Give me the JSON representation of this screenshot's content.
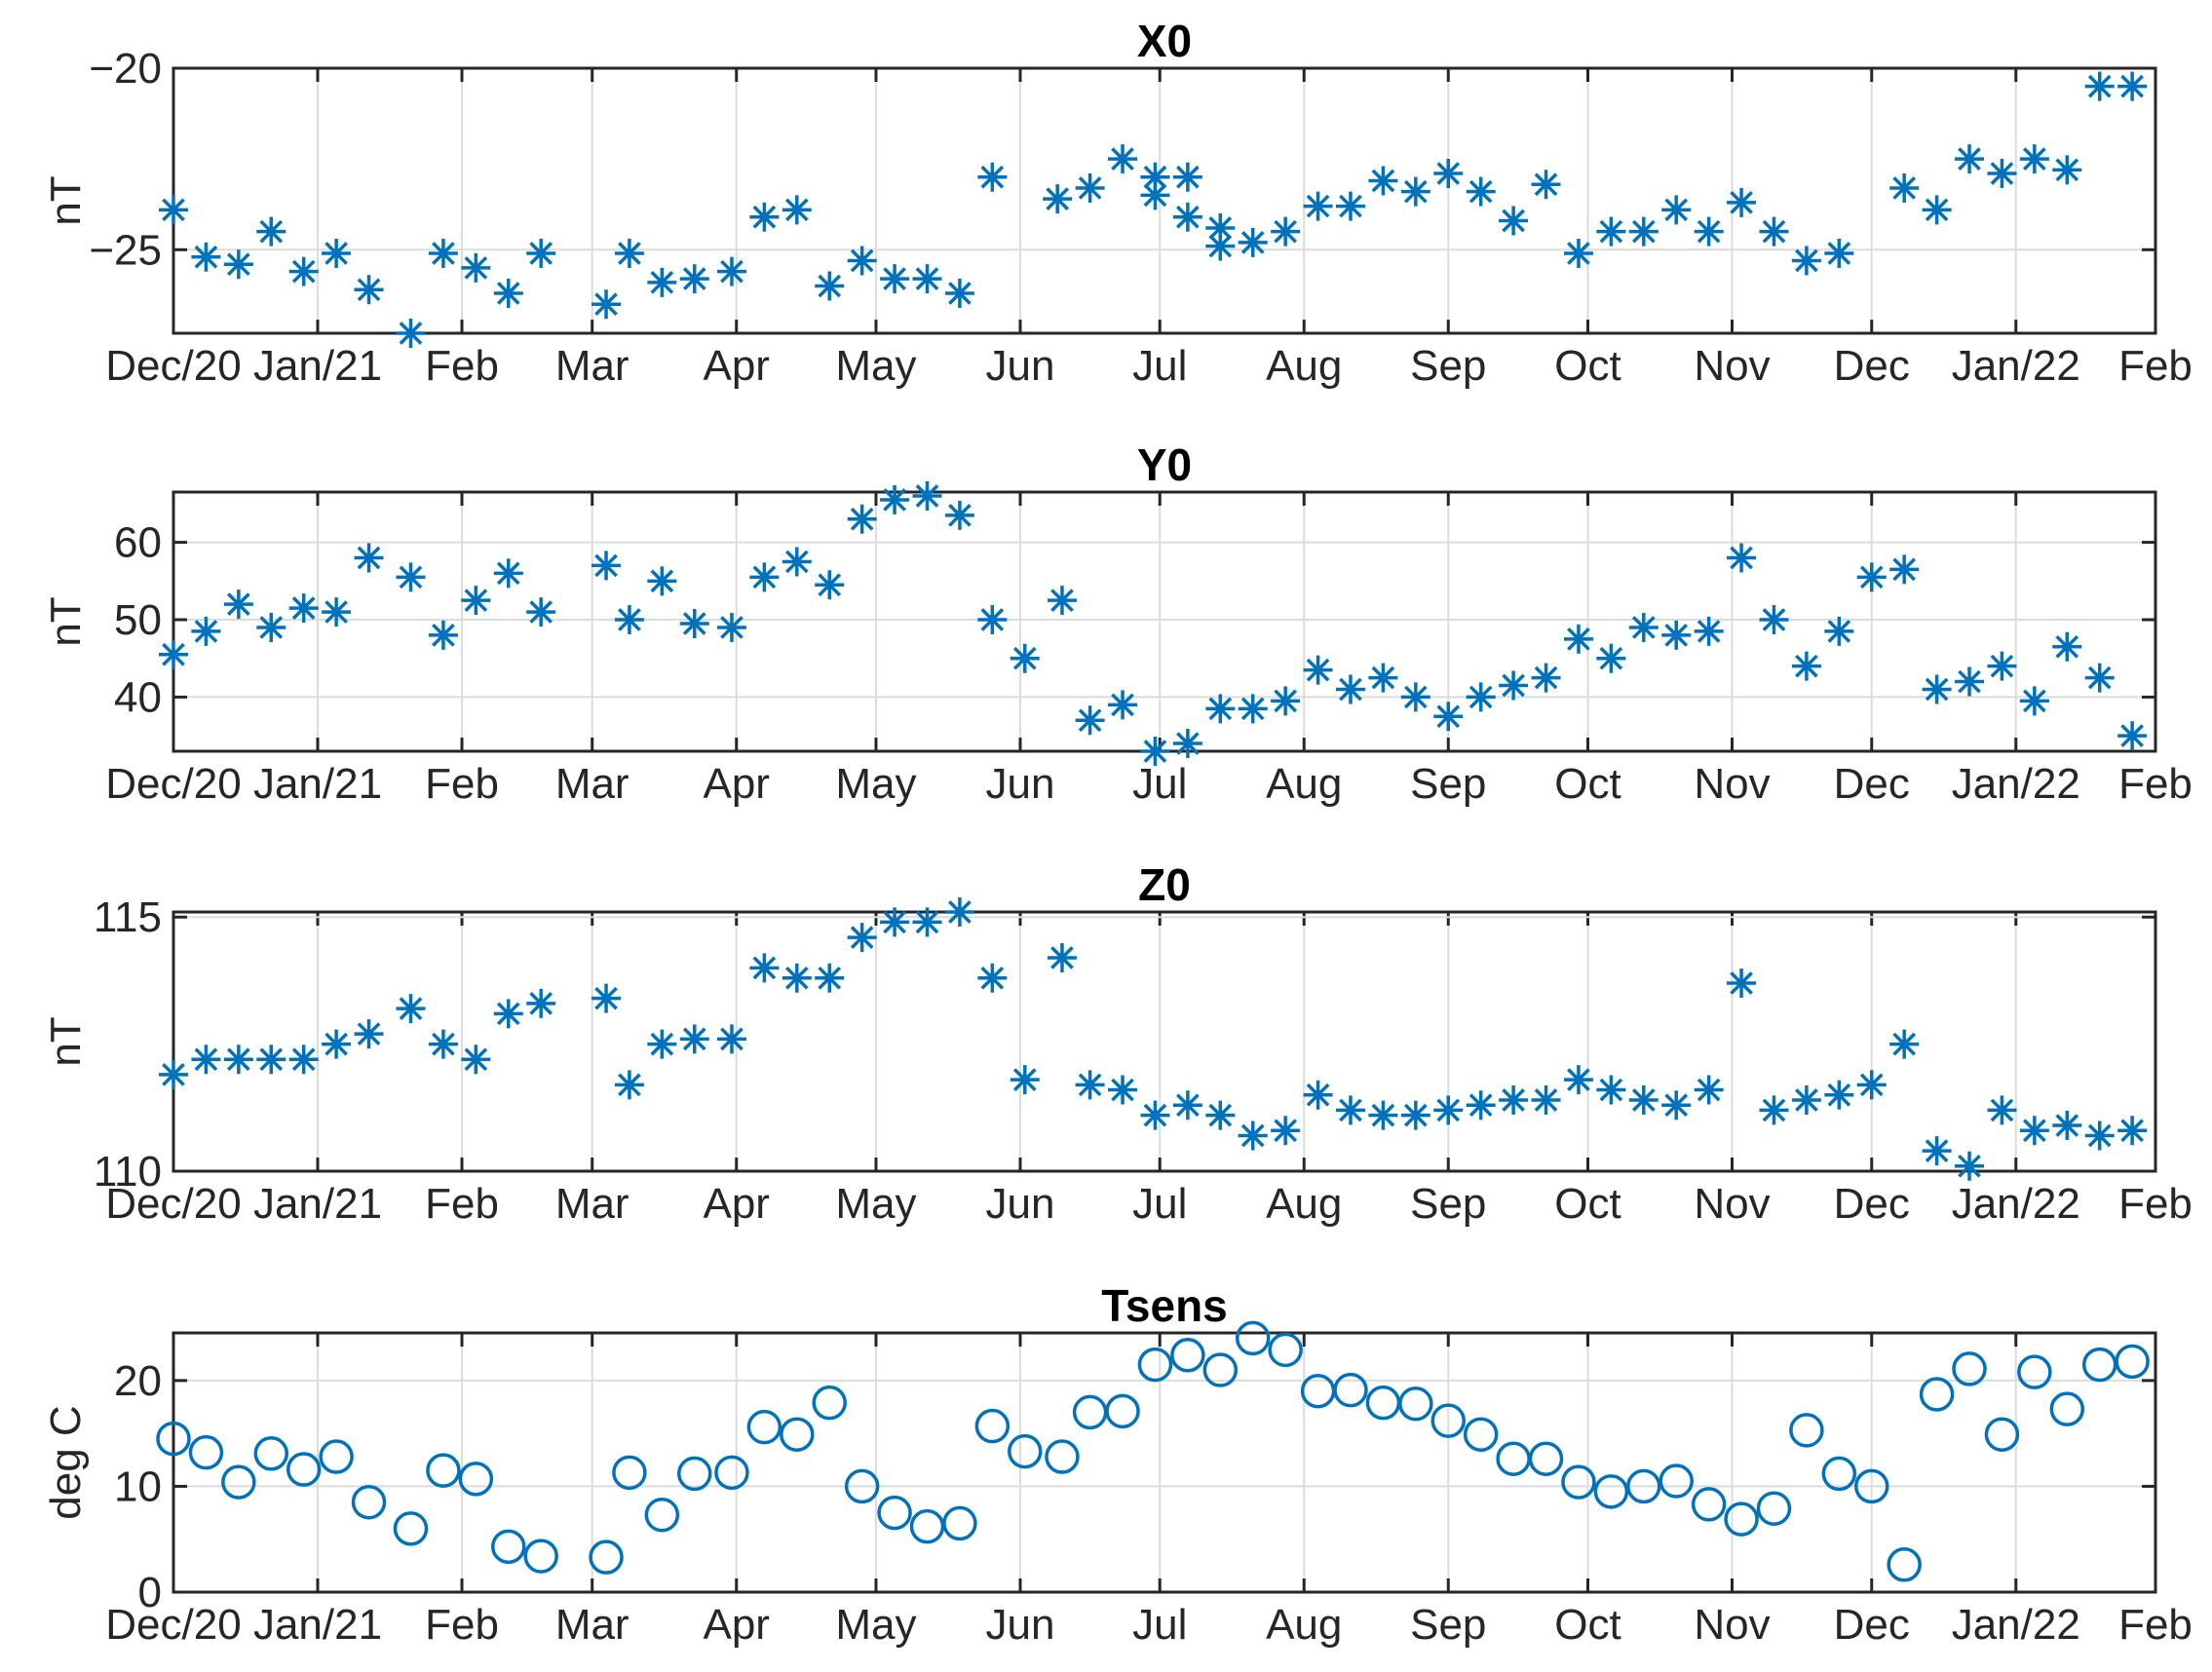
{
  "colors": {
    "marker": "#0072BD",
    "axis": "#262626",
    "grid": "#dcdcdc"
  },
  "chart_data": [
    {
      "type": "scatter",
      "marker": "asterisk",
      "title": "X0",
      "ylabel": "nT",
      "xlabel": "",
      "xlim": [
        0,
        426
      ],
      "ylim": [
        -27.3,
        -20
      ],
      "yticks": [
        -25,
        -20
      ],
      "ytick_labels": [
        "−25",
        "−20"
      ],
      "xticks": [
        0,
        31,
        62,
        90,
        121,
        151,
        182,
        212,
        243,
        274,
        304,
        335,
        365,
        396,
        427
      ],
      "xtick_labels": [
        "Dec/20",
        "Jan/21",
        "Feb",
        "Mar",
        "Apr",
        "May",
        "Jun",
        "Jul",
        "Aug",
        "Sep",
        "Oct",
        "Nov",
        "Dec",
        "Jan/22",
        "Feb"
      ],
      "grid": true,
      "x": [
        0,
        7,
        14,
        21,
        28,
        35,
        42,
        51,
        58,
        65,
        72,
        79,
        93,
        98,
        105,
        112,
        120,
        127,
        134,
        141,
        148,
        155,
        162,
        169,
        176,
        190,
        197,
        204,
        211,
        218,
        225,
        211,
        218,
        225,
        232,
        239,
        246,
        253,
        260,
        267,
        274,
        281,
        288,
        295,
        302,
        309,
        316,
        323,
        330,
        337,
        344,
        351,
        358,
        372,
        379,
        386,
        393,
        400,
        407,
        414,
        421
      ],
      "y": [
        -23.9,
        -25.2,
        -25.4,
        -24.5,
        -25.6,
        -25.1,
        -26.1,
        -27.3,
        -25.1,
        -25.5,
        -26.2,
        -25.1,
        -26.5,
        -25.1,
        -25.9,
        -25.8,
        -25.6,
        -24.1,
        -23.9,
        -26.0,
        -25.3,
        -25.8,
        -25.8,
        -26.2,
        -23.0,
        -23.6,
        -23.3,
        -22.5,
        -23.0,
        -23.0,
        -24.9,
        -23.5,
        -24.1,
        -24.4,
        -24.8,
        -24.5,
        -23.8,
        -23.8,
        -23.1,
        -23.4,
        -22.9,
        -23.4,
        -24.2,
        -23.2,
        -25.1,
        -24.5,
        -24.5,
        -23.9,
        -24.5,
        -23.7,
        -24.5,
        -25.3,
        -25.1,
        -23.3,
        -23.9,
        -22.5,
        -22.9,
        -22.5,
        -22.8,
        -20.5,
        -20.5
      ]
    },
    {
      "type": "scatter",
      "marker": "asterisk",
      "title": "Y0",
      "ylabel": "nT",
      "xlabel": "",
      "xlim": [
        0,
        426
      ],
      "ylim": [
        33,
        66.5
      ],
      "yticks": [
        40,
        50,
        60
      ],
      "ytick_labels": [
        "40",
        "50",
        "60"
      ],
      "xticks": [
        0,
        31,
        62,
        90,
        121,
        151,
        182,
        212,
        243,
        274,
        304,
        335,
        365,
        396,
        427
      ],
      "xtick_labels": [
        "Dec/20",
        "Jan/21",
        "Feb",
        "Mar",
        "Apr",
        "May",
        "Jun",
        "Jul",
        "Aug",
        "Sep",
        "Oct",
        "Nov",
        "Dec",
        "Jan/22",
        "Feb"
      ],
      "grid": true,
      "x": [
        0,
        7,
        14,
        21,
        28,
        35,
        42,
        51,
        58,
        65,
        72,
        79,
        93,
        98,
        105,
        112,
        120,
        127,
        134,
        141,
        148,
        155,
        162,
        169,
        176,
        183,
        191,
        197,
        204,
        211,
        218,
        225,
        232,
        239,
        246,
        253,
        260,
        267,
        274,
        281,
        288,
        295,
        302,
        309,
        316,
        323,
        330,
        337,
        344,
        351,
        358,
        365,
        372,
        379,
        386,
        393,
        400,
        407,
        414,
        421
      ],
      "y": [
        45.5,
        48.5,
        52.0,
        49.0,
        51.5,
        51.0,
        58.0,
        55.5,
        48.0,
        52.5,
        56.0,
        51.0,
        57.0,
        50.0,
        55.0,
        49.5,
        49.0,
        55.5,
        57.5,
        54.5,
        63.0,
        65.5,
        66.0,
        63.5,
        50.0,
        45.0,
        52.5,
        37.0,
        39.0,
        33.0,
        34.0,
        38.5,
        38.5,
        39.5,
        43.5,
        41.0,
        42.5,
        40.0,
        37.5,
        40.0,
        41.5,
        42.5,
        47.5,
        45.0,
        49.0,
        48.0,
        48.5,
        58.0,
        50.0,
        44.0,
        48.5,
        55.5,
        56.5,
        41.0,
        42.0,
        44.0,
        39.5,
        46.5,
        42.5,
        35.0
      ]
    },
    {
      "type": "scatter",
      "marker": "asterisk",
      "title": "Z0",
      "ylabel": "nT",
      "xlabel": "",
      "xlim": [
        0,
        426
      ],
      "ylim": [
        110,
        115.1
      ],
      "yticks": [
        110,
        115
      ],
      "ytick_labels": [
        "110",
        "115"
      ],
      "xticks": [
        0,
        31,
        62,
        90,
        121,
        151,
        182,
        212,
        243,
        274,
        304,
        335,
        365,
        396,
        427
      ],
      "xtick_labels": [
        "Dec/20",
        "Jan/21",
        "Feb",
        "Mar",
        "Apr",
        "May",
        "Jun",
        "Jul",
        "Aug",
        "Sep",
        "Oct",
        "Nov",
        "Dec",
        "Jan/22",
        "Feb"
      ],
      "grid": true,
      "x": [
        0,
        7,
        14,
        21,
        28,
        35,
        42,
        51,
        58,
        65,
        72,
        79,
        93,
        98,
        105,
        112,
        120,
        127,
        134,
        141,
        148,
        155,
        162,
        169,
        176,
        183,
        191,
        197,
        204,
        211,
        218,
        225,
        232,
        239,
        246,
        253,
        260,
        267,
        274,
        281,
        288,
        295,
        302,
        309,
        316,
        323,
        330,
        337,
        344,
        351,
        358,
        365,
        372,
        379,
        386,
        393,
        400,
        407,
        414,
        421
      ],
      "y": [
        111.9,
        112.2,
        112.2,
        112.2,
        112.2,
        112.5,
        112.7,
        113.2,
        112.5,
        112.2,
        113.1,
        113.3,
        113.4,
        111.7,
        112.5,
        112.6,
        112.6,
        114.0,
        113.8,
        113.8,
        114.6,
        114.9,
        114.9,
        115.1,
        113.8,
        111.8,
        114.2,
        111.7,
        111.6,
        111.1,
        111.3,
        111.1,
        110.7,
        110.8,
        111.5,
        111.2,
        111.1,
        111.1,
        111.2,
        111.3,
        111.4,
        111.4,
        111.8,
        111.6,
        111.4,
        111.3,
        111.6,
        113.7,
        111.2,
        111.4,
        111.5,
        111.7,
        112.5,
        110.4,
        110.1,
        111.2,
        110.8,
        110.9,
        110.7,
        110.8
      ]
    },
    {
      "type": "scatter",
      "marker": "circle",
      "title": "Tsens",
      "ylabel": "deg C",
      "xlabel": "",
      "xlim": [
        0,
        426
      ],
      "ylim": [
        0,
        24.5
      ],
      "yticks": [
        0,
        10,
        20
      ],
      "ytick_labels": [
        "0",
        "10",
        "20"
      ],
      "xticks": [
        0,
        31,
        62,
        90,
        121,
        151,
        182,
        212,
        243,
        274,
        304,
        335,
        365,
        396,
        427
      ],
      "xtick_labels": [
        "Dec/20",
        "Jan/21",
        "Feb",
        "Mar",
        "Apr",
        "May",
        "Jun",
        "Jul",
        "Aug",
        "Sep",
        "Oct",
        "Nov",
        "Dec",
        "Jan/22",
        "Feb"
      ],
      "grid": true,
      "x": [
        0,
        7,
        14,
        21,
        28,
        35,
        42,
        51,
        58,
        65,
        72,
        79,
        93,
        98,
        105,
        112,
        120,
        127,
        134,
        141,
        148,
        155,
        162,
        169,
        176,
        183,
        191,
        197,
        204,
        211,
        218,
        225,
        232,
        239,
        246,
        253,
        260,
        267,
        274,
        281,
        288,
        295,
        302,
        309,
        316,
        323,
        330,
        337,
        344,
        351,
        358,
        365,
        372,
        379,
        386,
        393,
        400,
        407,
        414,
        421
      ],
      "y": [
        14.5,
        13.2,
        10.4,
        13.1,
        11.6,
        12.8,
        8.5,
        6.0,
        11.5,
        10.7,
        4.3,
        3.4,
        3.3,
        11.3,
        7.3,
        11.2,
        11.3,
        15.6,
        14.9,
        17.9,
        10.0,
        7.5,
        6.2,
        6.5,
        15.7,
        13.3,
        12.8,
        17.0,
        17.1,
        21.5,
        22.4,
        21.0,
        24.0,
        22.9,
        19.0,
        19.1,
        17.9,
        17.8,
        16.2,
        14.9,
        12.6,
        12.6,
        10.4,
        9.5,
        10.0,
        10.5,
        8.3,
        6.9,
        7.9,
        15.3,
        11.2,
        10.0,
        2.6,
        18.7,
        21.1,
        14.9,
        20.8,
        17.3,
        21.5,
        21.8
      ]
    }
  ]
}
